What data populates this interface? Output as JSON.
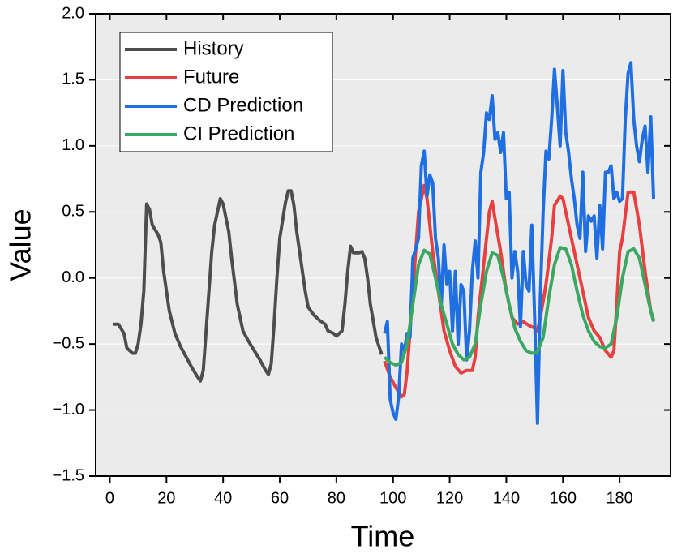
{
  "chart_data": {
    "type": "line",
    "x_label": "Time",
    "y_label": "Value",
    "xlim": [
      -5,
      198
    ],
    "ylim": [
      -1.5,
      2.0
    ],
    "xticks": [
      0,
      20,
      40,
      60,
      80,
      100,
      120,
      140,
      160,
      180
    ],
    "yticks": [
      {
        "value": -1.5,
        "label": "−1.5"
      },
      {
        "value": -1.0,
        "label": "−1.0"
      },
      {
        "value": -0.5,
        "label": "−0.5"
      },
      {
        "value": 0,
        "label": "0.0"
      },
      {
        "value": 0.5,
        "label": "0.5"
      },
      {
        "value": 1.0,
        "label": "1.0"
      },
      {
        "value": 1.5,
        "label": "1.5"
      },
      {
        "value": 2.0,
        "label": "2.0"
      }
    ],
    "grid": true,
    "legend": "upper left",
    "series": [
      {
        "name": "History",
        "color": "#4d4d4d",
        "x": [
          1,
          3,
          5,
          6,
          8,
          9,
          10,
          11,
          12,
          13,
          14,
          15,
          17,
          18,
          19,
          21,
          23,
          25,
          27,
          29,
          31,
          32,
          33,
          34,
          35,
          36,
          37,
          39,
          40,
          42,
          43,
          45,
          47,
          49,
          51,
          53,
          55,
          56,
          57,
          58,
          59,
          60,
          62,
          63,
          64,
          65,
          66,
          68,
          69,
          70,
          72,
          74,
          76,
          77,
          79,
          80,
          81,
          82,
          83,
          84,
          85,
          86,
          88,
          89,
          90,
          91,
          92,
          94,
          96
        ],
        "values": [
          -0.35,
          -0.35,
          -0.42,
          -0.53,
          -0.57,
          -0.57,
          -0.5,
          -0.35,
          -0.1,
          0.56,
          0.52,
          0.4,
          0.33,
          0.27,
          0.05,
          -0.25,
          -0.42,
          -0.52,
          -0.6,
          -0.68,
          -0.75,
          -0.78,
          -0.7,
          -0.4,
          -0.1,
          0.2,
          0.4,
          0.6,
          0.56,
          0.35,
          0.15,
          -0.2,
          -0.4,
          -0.48,
          -0.55,
          -0.62,
          -0.7,
          -0.73,
          -0.65,
          -0.35,
          0.0,
          0.3,
          0.57,
          0.66,
          0.66,
          0.55,
          0.35,
          0.05,
          -0.1,
          -0.22,
          -0.28,
          -0.32,
          -0.35,
          -0.4,
          -0.42,
          -0.44,
          -0.42,
          -0.4,
          -0.2,
          0.05,
          0.24,
          0.19,
          0.19,
          0.2,
          0.15,
          0.0,
          -0.2,
          -0.45,
          -0.58
        ]
      },
      {
        "name": "Future",
        "color": "#e84040",
        "x": [
          97,
          99,
          101,
          103,
          104,
          105,
          106,
          107,
          108,
          109,
          111,
          112,
          113,
          114,
          116,
          118,
          120,
          122,
          124,
          126,
          128,
          129,
          130,
          132,
          133,
          134,
          135,
          136,
          138,
          140,
          142,
          144,
          146,
          148,
          150,
          151,
          152,
          154,
          156,
          157,
          159,
          160,
          161,
          163,
          165,
          167,
          169,
          171,
          173,
          175,
          177,
          178,
          179,
          180,
          181,
          183,
          185,
          187,
          189,
          191,
          192
        ],
        "values": [
          -0.63,
          -0.75,
          -0.83,
          -0.9,
          -0.88,
          -0.7,
          -0.4,
          -0.1,
          0.2,
          0.5,
          0.7,
          0.6,
          0.4,
          0.2,
          -0.1,
          -0.4,
          -0.55,
          -0.67,
          -0.72,
          -0.7,
          -0.7,
          -0.6,
          -0.3,
          0.1,
          0.3,
          0.5,
          0.58,
          0.45,
          0.2,
          -0.1,
          -0.3,
          -0.35,
          -0.33,
          -0.36,
          -0.38,
          -0.4,
          -0.3,
          -0.05,
          0.3,
          0.55,
          0.62,
          0.6,
          0.5,
          0.3,
          0.1,
          -0.1,
          -0.3,
          -0.4,
          -0.45,
          -0.55,
          -0.6,
          -0.55,
          -0.2,
          0.2,
          0.3,
          0.65,
          0.65,
          0.4,
          0.05,
          -0.25,
          -0.32
        ]
      },
      {
        "name": "CD Prediction",
        "color": "#1f6fe0",
        "x": [
          97,
          98,
          99,
          100,
          101,
          102,
          103,
          104,
          105,
          106,
          107,
          108,
          109,
          110,
          111,
          112,
          113,
          114,
          115,
          116,
          117,
          118,
          119,
          120,
          121,
          122,
          123,
          124,
          125,
          126,
          127,
          128,
          129,
          130,
          131,
          132,
          133,
          134,
          135,
          136,
          137,
          138,
          139,
          140,
          141,
          142,
          143,
          144,
          145,
          146,
          147,
          148,
          149,
          150,
          151,
          152,
          153,
          154,
          155,
          156,
          157,
          158,
          159,
          160,
          161,
          162,
          163,
          164,
          165,
          166,
          167,
          168,
          169,
          170,
          171,
          172,
          173,
          174,
          175,
          176,
          177,
          178,
          179,
          180,
          181,
          182,
          183,
          184,
          185,
          186,
          187,
          188,
          189,
          190,
          191,
          192
        ],
        "values": [
          -0.42,
          -0.33,
          -0.92,
          -1.02,
          -1.07,
          -0.9,
          -0.5,
          -0.55,
          -0.42,
          -0.45,
          0.15,
          0.22,
          0.3,
          0.85,
          0.96,
          0.62,
          0.78,
          0.72,
          0.3,
          0.15,
          -0.22,
          0.25,
          -0.05,
          0.05,
          -0.4,
          0.05,
          -0.5,
          -0.05,
          -0.1,
          -0.62,
          -0.4,
          0.05,
          0.28,
          0.0,
          0.8,
          0.95,
          1.25,
          1.2,
          1.38,
          1.05,
          1.1,
          0.95,
          1.1,
          0.6,
          0.65,
          0.0,
          0.2,
          0.05,
          -0.37,
          0.2,
          -0.05,
          -0.1,
          0.4,
          -0.3,
          -1.1,
          -0.15,
          0.5,
          0.96,
          0.9,
          1.2,
          1.58,
          1.3,
          1.0,
          1.57,
          1.1,
          0.95,
          0.75,
          0.6,
          0.4,
          0.3,
          0.8,
          0.2,
          0.47,
          0.43,
          0.47,
          0.15,
          0.55,
          0.22,
          0.8,
          0.8,
          0.85,
          0.6,
          0.65,
          0.58,
          0.6,
          1.2,
          1.55,
          1.63,
          1.2,
          1.0,
          0.88,
          1.05,
          1.15,
          0.8,
          1.22,
          0.6
        ]
      },
      {
        "name": "CI Prediction",
        "color": "#3aa862",
        "x": [
          97,
          99,
          101,
          103,
          105,
          107,
          109,
          111,
          113,
          115,
          117,
          119,
          121,
          123,
          125,
          127,
          129,
          131,
          133,
          135,
          137,
          139,
          141,
          143,
          145,
          147,
          149,
          151,
          153,
          155,
          157,
          159,
          161,
          163,
          165,
          167,
          169,
          171,
          173,
          175,
          177,
          179,
          181,
          183,
          185,
          187,
          189,
          191,
          192
        ],
        "values": [
          -0.6,
          -0.64,
          -0.66,
          -0.64,
          -0.5,
          -0.2,
          0.1,
          0.21,
          0.18,
          0.0,
          -0.2,
          -0.35,
          -0.5,
          -0.58,
          -0.62,
          -0.6,
          -0.5,
          -0.2,
          0.05,
          0.19,
          0.17,
          0.0,
          -0.2,
          -0.38,
          -0.48,
          -0.55,
          -0.57,
          -0.56,
          -0.45,
          -0.15,
          0.1,
          0.23,
          0.22,
          0.1,
          -0.1,
          -0.28,
          -0.4,
          -0.48,
          -0.52,
          -0.53,
          -0.5,
          -0.3,
          0.0,
          0.2,
          0.22,
          0.15,
          -0.05,
          -0.25,
          -0.33
        ]
      }
    ]
  }
}
